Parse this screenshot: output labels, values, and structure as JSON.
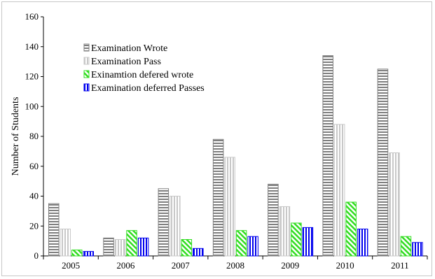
{
  "chart_data": {
    "type": "bar",
    "title": "",
    "xlabel": "",
    "ylabel": "Number of Students",
    "ylim": [
      0,
      160
    ],
    "yticks": [
      0,
      20,
      40,
      60,
      80,
      100,
      120,
      140,
      160
    ],
    "grid": false,
    "legend_position": "top-left",
    "categories": [
      "2005",
      "2006",
      "2007",
      "2008",
      "2009",
      "2010",
      "2011"
    ],
    "series": [
      {
        "name": "Examination Wrote",
        "values": [
          35,
          12,
          45,
          78,
          48,
          134,
          125
        ],
        "color": "#7f7f7f",
        "pattern": "horizontal-stripes"
      },
      {
        "name": "Examination Pass",
        "values": [
          18,
          11,
          40,
          66,
          33,
          88,
          69
        ],
        "color": "#c8c8c8",
        "pattern": "vertical-stripes"
      },
      {
        "name": "Exinamtion defered wrote",
        "values": [
          4,
          17,
          11,
          17,
          22,
          36,
          13
        ],
        "color": "#33dd22",
        "pattern": "diagonal-stripes"
      },
      {
        "name": "Examination deferred Passes",
        "values": [
          3,
          12,
          5,
          13,
          19,
          18,
          9
        ],
        "color": "#0000ee",
        "pattern": "vertical-stripes"
      }
    ]
  }
}
